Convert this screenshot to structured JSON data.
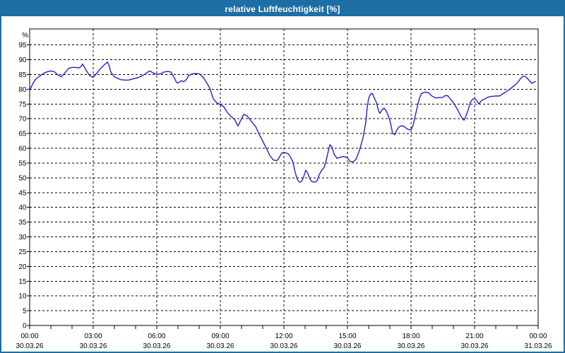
{
  "window": {
    "title": "relative Luftfeuchtigkeit [%]"
  },
  "colors": {
    "titlebar_bg": "#1d6ea5",
    "titlebar_text": "#ffffff",
    "window_border": "#1d6ea5",
    "background": "#ffffff",
    "plot_border": "#000000",
    "gridline": "#000000",
    "tick_label": "#000000",
    "series_line": "#2222cc"
  },
  "chart_data": {
    "type": "line",
    "title": "relative Luftfeuchtigkeit [%]",
    "ylabel_unit": "%",
    "ylim": [
      0,
      100.4
    ],
    "xlim_hours": [
      0,
      24
    ],
    "grid": true,
    "legend_position": "none",
    "y_tick_step": 5,
    "y_tick_labels": [
      "0",
      "5",
      "10",
      "15",
      "20",
      "25",
      "30",
      "35",
      "40",
      "45",
      "50",
      "55",
      "60",
      "65",
      "70",
      "75",
      "80",
      "85",
      "90",
      "95"
    ],
    "x_minor_tick_hours": 1,
    "x_ticks": [
      {
        "hour": 0,
        "time": "00:00",
        "date": "30.03.26"
      },
      {
        "hour": 3,
        "time": "03:00",
        "date": "30.03.26"
      },
      {
        "hour": 6,
        "time": "06:00",
        "date": "30.03.26"
      },
      {
        "hour": 9,
        "time": "09:00",
        "date": "30.03.26"
      },
      {
        "hour": 12,
        "time": "12:00",
        "date": "30.03.26"
      },
      {
        "hour": 15,
        "time": "15:00",
        "date": "30.03.26"
      },
      {
        "hour": 18,
        "time": "18:00",
        "date": "30.03.26"
      },
      {
        "hour": 21,
        "time": "21:00",
        "date": "30.03.26"
      },
      {
        "hour": 24,
        "time": "00:00",
        "date": "31.03.26"
      }
    ],
    "series": [
      {
        "name": "relative Luftfeuchtigkeit",
        "color": "#2222cc",
        "points": [
          [
            0,
            79.6
          ],
          [
            0.13,
            81.6
          ],
          [
            0.27,
            83.3
          ],
          [
            0.5,
            84.6
          ],
          [
            0.67,
            85.4
          ],
          [
            0.83,
            85.9
          ],
          [
            1,
            86.2
          ],
          [
            1.17,
            85.9
          ],
          [
            1.33,
            84.8
          ],
          [
            1.5,
            84.2
          ],
          [
            1.67,
            85.6
          ],
          [
            1.83,
            87
          ],
          [
            2,
            87.4
          ],
          [
            2.17,
            87.4
          ],
          [
            2.33,
            87.2
          ],
          [
            2.42,
            87.7
          ],
          [
            2.5,
            88.5
          ],
          [
            2.58,
            87.5
          ],
          [
            2.67,
            86.4
          ],
          [
            2.83,
            84.6
          ],
          [
            3,
            84
          ],
          [
            3.17,
            85.4
          ],
          [
            3.33,
            86.9
          ],
          [
            3.5,
            88.1
          ],
          [
            3.67,
            89.2
          ],
          [
            3.75,
            88
          ],
          [
            3.83,
            85.8
          ],
          [
            4,
            84.2
          ],
          [
            4.17,
            83.6
          ],
          [
            4.33,
            83.2
          ],
          [
            4.5,
            83.1
          ],
          [
            4.67,
            83.1
          ],
          [
            4.83,
            83.4
          ],
          [
            5,
            83.7
          ],
          [
            5.17,
            84.1
          ],
          [
            5.33,
            84.6
          ],
          [
            5.5,
            85.4
          ],
          [
            5.67,
            86.2
          ],
          [
            5.83,
            85.5
          ],
          [
            6,
            85
          ],
          [
            6.17,
            85.2
          ],
          [
            6.33,
            85.8
          ],
          [
            6.5,
            86
          ],
          [
            6.67,
            85.8
          ],
          [
            6.83,
            83.8
          ],
          [
            6.93,
            82.3
          ],
          [
            7,
            82.1
          ],
          [
            7.17,
            82.9
          ],
          [
            7.27,
            82.5
          ],
          [
            7.4,
            83.3
          ],
          [
            7.5,
            84.6
          ],
          [
            7.67,
            85.2
          ],
          [
            7.83,
            85.3
          ],
          [
            8,
            85.2
          ],
          [
            8.17,
            84.2
          ],
          [
            8.33,
            82.5
          ],
          [
            8.5,
            80.4
          ],
          [
            8.67,
            76.7
          ],
          [
            8.83,
            75.4
          ],
          [
            9,
            74.8
          ],
          [
            9.17,
            74
          ],
          [
            9.33,
            72.1
          ],
          [
            9.5,
            70.8
          ],
          [
            9.67,
            69.8
          ],
          [
            9.83,
            67.5
          ],
          [
            10.1,
            71.5
          ],
          [
            10.27,
            70.9
          ],
          [
            10.4,
            69.7
          ],
          [
            10.53,
            68.5
          ],
          [
            10.67,
            67.3
          ],
          [
            10.83,
            64.8
          ],
          [
            11,
            62.4
          ],
          [
            11.17,
            60
          ],
          [
            11.33,
            57.6
          ],
          [
            11.5,
            56
          ],
          [
            11.67,
            55.8
          ],
          [
            11.77,
            56.8
          ],
          [
            11.9,
            58.4
          ],
          [
            12,
            58.6
          ],
          [
            12.2,
            58.2
          ],
          [
            12.33,
            56.8
          ],
          [
            12.43,
            55.2
          ],
          [
            12.53,
            51.9
          ],
          [
            12.63,
            49.5
          ],
          [
            12.73,
            48.5
          ],
          [
            12.83,
            48.7
          ],
          [
            12.93,
            50.3
          ],
          [
            13.03,
            52.6
          ],
          [
            13.13,
            51.5
          ],
          [
            13.23,
            49.5
          ],
          [
            13.33,
            48.7
          ],
          [
            13.47,
            48.5
          ],
          [
            13.57,
            49.1
          ],
          [
            13.67,
            51.1
          ],
          [
            13.8,
            52.7
          ],
          [
            13.9,
            53.5
          ],
          [
            14,
            56
          ],
          [
            14.1,
            59.2
          ],
          [
            14.17,
            61.2
          ],
          [
            14.27,
            60.4
          ],
          [
            14.37,
            58
          ],
          [
            14.5,
            56.6
          ],
          [
            14.67,
            57
          ],
          [
            14.83,
            57.2
          ],
          [
            15,
            56.8
          ],
          [
            15.13,
            55.5
          ],
          [
            15.27,
            55.4
          ],
          [
            15.4,
            56.2
          ],
          [
            15.57,
            59.4
          ],
          [
            15.73,
            63.4
          ],
          [
            15.87,
            69
          ],
          [
            15.93,
            73.8
          ],
          [
            16,
            77
          ],
          [
            16.1,
            78.4
          ],
          [
            16.17,
            78.6
          ],
          [
            16.27,
            77
          ],
          [
            16.37,
            75.4
          ],
          [
            16.47,
            72.6
          ],
          [
            16.53,
            71.8
          ],
          [
            16.63,
            73
          ],
          [
            16.73,
            73.6
          ],
          [
            16.83,
            72.6
          ],
          [
            16.93,
            71
          ],
          [
            17.03,
            68.6
          ],
          [
            17.13,
            65
          ],
          [
            17.23,
            64.6
          ],
          [
            17.33,
            66.2
          ],
          [
            17.43,
            67.2
          ],
          [
            17.53,
            67.6
          ],
          [
            17.67,
            67.4
          ],
          [
            17.77,
            66.8
          ],
          [
            17.87,
            66.4
          ],
          [
            18,
            66.2
          ],
          [
            18.1,
            67.8
          ],
          [
            18.2,
            71
          ],
          [
            18.3,
            74.2
          ],
          [
            18.4,
            77
          ],
          [
            18.5,
            78.6
          ],
          [
            18.67,
            79
          ],
          [
            18.83,
            78.8
          ],
          [
            19,
            77.6
          ],
          [
            19.17,
            77
          ],
          [
            19.33,
            77.2
          ],
          [
            19.5,
            77.2
          ],
          [
            19.6,
            77.8
          ],
          [
            19.73,
            77.8
          ],
          [
            19.87,
            76.6
          ],
          [
            20,
            75.4
          ],
          [
            20.17,
            73.4
          ],
          [
            20.33,
            71.2
          ],
          [
            20.43,
            70
          ],
          [
            20.5,
            69.5
          ],
          [
            20.6,
            71
          ],
          [
            20.7,
            73.1
          ],
          [
            20.8,
            75.5
          ],
          [
            20.9,
            76.6
          ],
          [
            21,
            76.8
          ],
          [
            21.1,
            76.2
          ],
          [
            21.2,
            75
          ],
          [
            21.33,
            76.2
          ],
          [
            21.5,
            76.8
          ],
          [
            21.67,
            77.4
          ],
          [
            21.83,
            77.6
          ],
          [
            22,
            77.7
          ],
          [
            22.17,
            77.7
          ],
          [
            22.33,
            78.4
          ],
          [
            22.5,
            79.2
          ],
          [
            22.67,
            80
          ],
          [
            22.83,
            81
          ],
          [
            23,
            82
          ],
          [
            23.17,
            83.6
          ],
          [
            23.27,
            84.3
          ],
          [
            23.37,
            84.4
          ],
          [
            23.47,
            83.8
          ],
          [
            23.6,
            82.8
          ],
          [
            23.7,
            82
          ],
          [
            23.8,
            82.4
          ],
          [
            23.87,
            82.6
          ]
        ]
      }
    ]
  }
}
